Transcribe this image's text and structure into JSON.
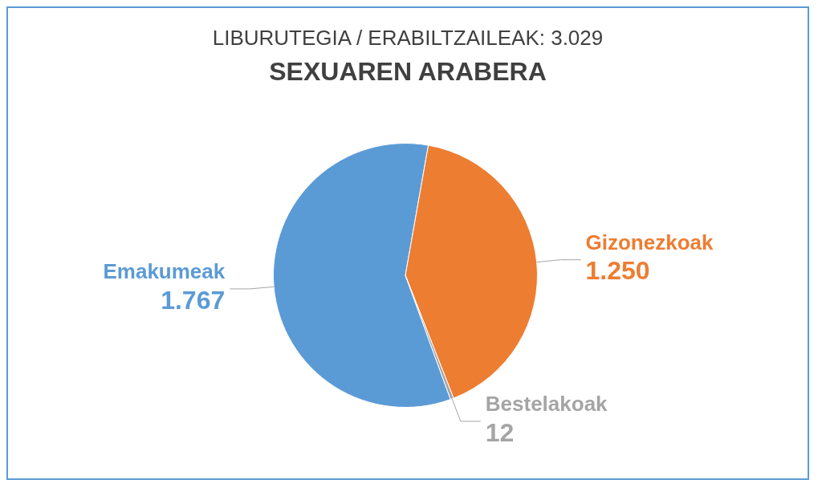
{
  "chart_data": {
    "type": "pie",
    "title": "LIBURUTEGIA / ERABILTZAILEAK: 3.029",
    "subtitle": "SEXUAREN ARABERA",
    "categories": [
      "Emakumeak",
      "Gizonezkoak",
      "Bestelakoak"
    ],
    "values": [
      1767,
      1250,
      12
    ],
    "value_labels": [
      "1.767",
      "1.250",
      "12"
    ],
    "colors": [
      "#5b9bd5",
      "#ed7d31",
      "#a5a5a5"
    ],
    "legend": false
  }
}
